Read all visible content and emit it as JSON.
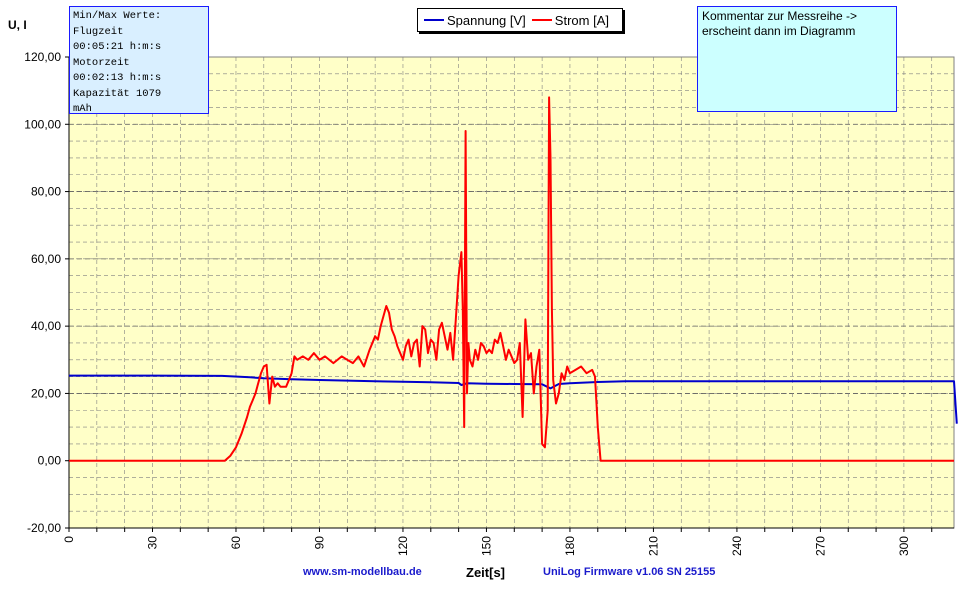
{
  "chart_data": {
    "type": "line",
    "ylabel": "U, I",
    "xlabel": "Zeit[s]",
    "xlim": [
      0,
      318
    ],
    "ylim": [
      -20,
      120
    ],
    "x_ticks": [
      0,
      30,
      60,
      90,
      120,
      150,
      180,
      210,
      240,
      270,
      300
    ],
    "y_ticks": [
      "-20,00",
      "0,00",
      "20,00",
      "40,00",
      "60,00",
      "80,00",
      "100,00",
      "120,00"
    ],
    "grid": true,
    "legend_position": "top-center",
    "series": [
      {
        "name": "Spannung [V]",
        "color": "#0000cc",
        "x": [
          0,
          30,
          55,
          65,
          70,
          80,
          90,
          100,
          110,
          120,
          130,
          140,
          141,
          143,
          150,
          160,
          170,
          173,
          176,
          180,
          190,
          200,
          250,
          300,
          318,
          319
        ],
        "y": [
          25.3,
          25.3,
          25.2,
          24.8,
          24.5,
          24.2,
          24.0,
          23.8,
          23.6,
          23.5,
          23.3,
          23.1,
          22.5,
          23.0,
          22.9,
          22.8,
          22.7,
          21.5,
          22.8,
          23.0,
          23.4,
          23.6,
          23.6,
          23.6,
          23.6,
          11.0
        ]
      },
      {
        "name": "Strom [A]",
        "color": "#ff0000",
        "x": [
          0,
          30,
          56,
          58,
          60,
          62,
          64,
          65,
          66,
          67,
          68,
          69,
          70,
          71,
          72,
          73,
          74,
          75,
          76,
          78,
          79,
          80,
          81,
          82,
          84,
          86,
          88,
          90,
          92,
          95,
          98,
          100,
          102,
          104,
          106,
          108,
          110,
          111,
          112,
          113,
          114,
          115,
          116,
          117,
          118,
          119,
          120,
          121,
          122,
          123,
          124,
          125,
          126,
          127,
          128,
          129,
          130,
          131,
          132,
          133,
          134,
          135,
          136,
          137,
          138,
          139,
          140,
          141,
          141.5,
          142,
          142.5,
          143,
          143.5,
          144,
          145,
          146,
          147,
          148,
          149,
          150,
          151,
          152,
          153,
          154,
          155,
          156,
          157,
          158,
          159,
          160,
          161,
          162,
          163,
          164,
          165,
          166,
          167,
          168,
          169,
          170,
          171,
          172,
          172.5,
          173,
          173.5,
          174,
          175,
          176,
          177,
          178,
          179,
          180,
          182,
          184,
          186,
          188,
          189,
          190,
          191,
          200,
          250,
          300,
          318
        ],
        "y": [
          0,
          0,
          0,
          1.5,
          4,
          8,
          13,
          16,
          18,
          20,
          23,
          26,
          28,
          28.5,
          17,
          25,
          22,
          23,
          22,
          22,
          24,
          26,
          31,
          30,
          31,
          30,
          32,
          30,
          31,
          29,
          31,
          30,
          29,
          31,
          28,
          33,
          37,
          36,
          40,
          43,
          46,
          44,
          39,
          37,
          34,
          32,
          30,
          34,
          36,
          31,
          35,
          36,
          28,
          40,
          39,
          32,
          36,
          35,
          30,
          39,
          41,
          37,
          33,
          38,
          30,
          42,
          55,
          62,
          45,
          10,
          98,
          20,
          35,
          30,
          28,
          33,
          30,
          35,
          34,
          32,
          33,
          32,
          36,
          35,
          38,
          34,
          30,
          33,
          31,
          29,
          30,
          35,
          13,
          42,
          30,
          32,
          20,
          28,
          33,
          5,
          4,
          15,
          108,
          90,
          45,
          24,
          17,
          20,
          26,
          24,
          28,
          26,
          27,
          28,
          26,
          27,
          25,
          10,
          0,
          0,
          0,
          0,
          0
        ]
      }
    ]
  },
  "minmax_box": {
    "lines": [
      "Min/Max Werte:",
      "Flugzeit",
      "00:05:21 h:m:s",
      "Motorzeit",
      "00:02:13 h:m:s",
      "Kapazität   1079",
      "mAh"
    ]
  },
  "comment_box": {
    "line1": "Kommentar zur Messreihe ->",
    "line2": "erscheint dann im Diagramm"
  },
  "footer": {
    "website": "www.sm-modellbau.de",
    "firmware": "UniLog Firmware v1.06 SN 25155"
  },
  "colors": {
    "plot_background": "#ffffc8",
    "grid": "#808080"
  }
}
